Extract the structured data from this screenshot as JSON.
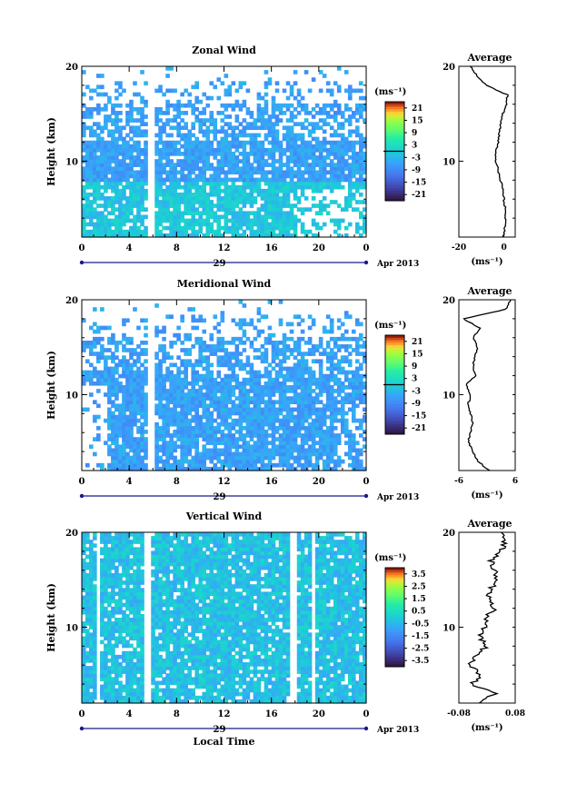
{
  "chart_data": [
    {
      "type": "heatmap",
      "title": "Zonal Wind",
      "ylabel": "Height (km)",
      "xlabel": "",
      "xlim": [
        0,
        24
      ],
      "ylim": [
        2,
        20
      ],
      "x_ticks": [
        "0",
        "4",
        "8",
        "12",
        "16",
        "20",
        "0"
      ],
      "y_ticks": [
        "10",
        "20"
      ],
      "day_label": "29",
      "date_label": "Apr 2013",
      "colorbar": {
        "unit": "(ms⁻¹)",
        "ticks": [
          "21",
          "15",
          "9",
          "3",
          "-3",
          "-9",
          "-15",
          "-21"
        ],
        "range": [
          -24,
          24
        ]
      },
      "gaps_hours": [
        [
          5.5,
          6.0
        ]
      ],
      "profile": {
        "title": "Average",
        "xlabel": "(ms⁻¹)",
        "x_ticks": [
          "-20",
          "0"
        ],
        "xlim": [
          -20,
          5
        ],
        "y_ticks": [
          "10",
          "20"
        ],
        "height_km": [
          2,
          3,
          4,
          5,
          6,
          7,
          8,
          9,
          10,
          11,
          12,
          13,
          14,
          15,
          16,
          17,
          18,
          19,
          20
        ],
        "values": [
          -0.5,
          0.5,
          0.8,
          0.5,
          0,
          -0.5,
          -1.5,
          -2.5,
          -3.5,
          -3.5,
          -2.5,
          -2,
          -1.5,
          -0.5,
          1,
          1.5,
          -8,
          -12,
          -15
        ]
      }
    },
    {
      "type": "heatmap",
      "title": "Meridional Wind",
      "ylabel": "Height (km)",
      "xlabel": "",
      "xlim": [
        0,
        24
      ],
      "ylim": [
        2,
        20
      ],
      "x_ticks": [
        "0",
        "4",
        "8",
        "12",
        "16",
        "20",
        "0"
      ],
      "y_ticks": [
        "10",
        "20"
      ],
      "day_label": "29",
      "date_label": "Apr 2013",
      "colorbar": {
        "unit": "(ms⁻¹)",
        "ticks": [
          "21",
          "15",
          "9",
          "3",
          "-3",
          "-9",
          "-15",
          "-21"
        ],
        "range": [
          -24,
          24
        ]
      },
      "gaps_hours": [
        [
          5.5,
          6.0
        ]
      ],
      "profile": {
        "title": "Average",
        "xlabel": "(ms⁻¹)",
        "x_ticks": [
          "-6",
          "6"
        ],
        "xlim": [
          -6,
          6
        ],
        "y_ticks": [
          "10",
          "20"
        ],
        "height_km": [
          2,
          3,
          4,
          5,
          6,
          7,
          8,
          9,
          10,
          11,
          12,
          13,
          14,
          15,
          16,
          17,
          18,
          19,
          20
        ],
        "values": [
          0.5,
          -2,
          -3,
          -4,
          -3.5,
          -3,
          -3.5,
          -4,
          -3.5,
          -4.5,
          -2.5,
          -3,
          -2.5,
          -2,
          -3,
          -1.5,
          -5,
          4,
          5
        ]
      }
    },
    {
      "type": "heatmap",
      "title": "Vertical Wind",
      "ylabel": "Height (km)",
      "xlabel": "Local Time",
      "xlim": [
        0,
        24
      ],
      "ylim": [
        2,
        20
      ],
      "x_ticks": [
        "0",
        "4",
        "8",
        "12",
        "16",
        "20",
        "0"
      ],
      "y_ticks": [
        "10",
        "20"
      ],
      "day_label": "29",
      "date_label": "Apr 2013",
      "colorbar": {
        "unit": "(ms⁻¹)",
        "ticks": [
          "3.5",
          "2.5",
          "1.5",
          "0.5",
          "-0.5",
          "-1.5",
          "-2.5",
          "-3.5"
        ],
        "range": [
          -4,
          4
        ]
      },
      "gaps_hours": [
        [
          1.2,
          1.5
        ],
        [
          5.3,
          5.9
        ],
        [
          17.5,
          18.0
        ],
        [
          19.3,
          19.7
        ]
      ],
      "profile": {
        "title": "Average",
        "xlabel": "(ms⁻¹)",
        "x_ticks": [
          "-0.08",
          "0.08"
        ],
        "xlim": [
          -0.08,
          0.08
        ],
        "y_ticks": [
          "10",
          "20"
        ],
        "height_km": [
          2,
          3,
          4,
          5,
          6,
          7,
          8,
          9,
          10,
          11,
          12,
          13,
          14,
          15,
          16,
          17,
          18,
          19,
          20
        ],
        "values": [
          -0.03,
          0.02,
          -0.04,
          -0.02,
          -0.05,
          -0.03,
          0,
          -0.02,
          -0.01,
          0,
          0.02,
          0,
          0.01,
          0.03,
          0.02,
          0.01,
          0.04,
          0.05,
          0.04
        ]
      }
    }
  ]
}
